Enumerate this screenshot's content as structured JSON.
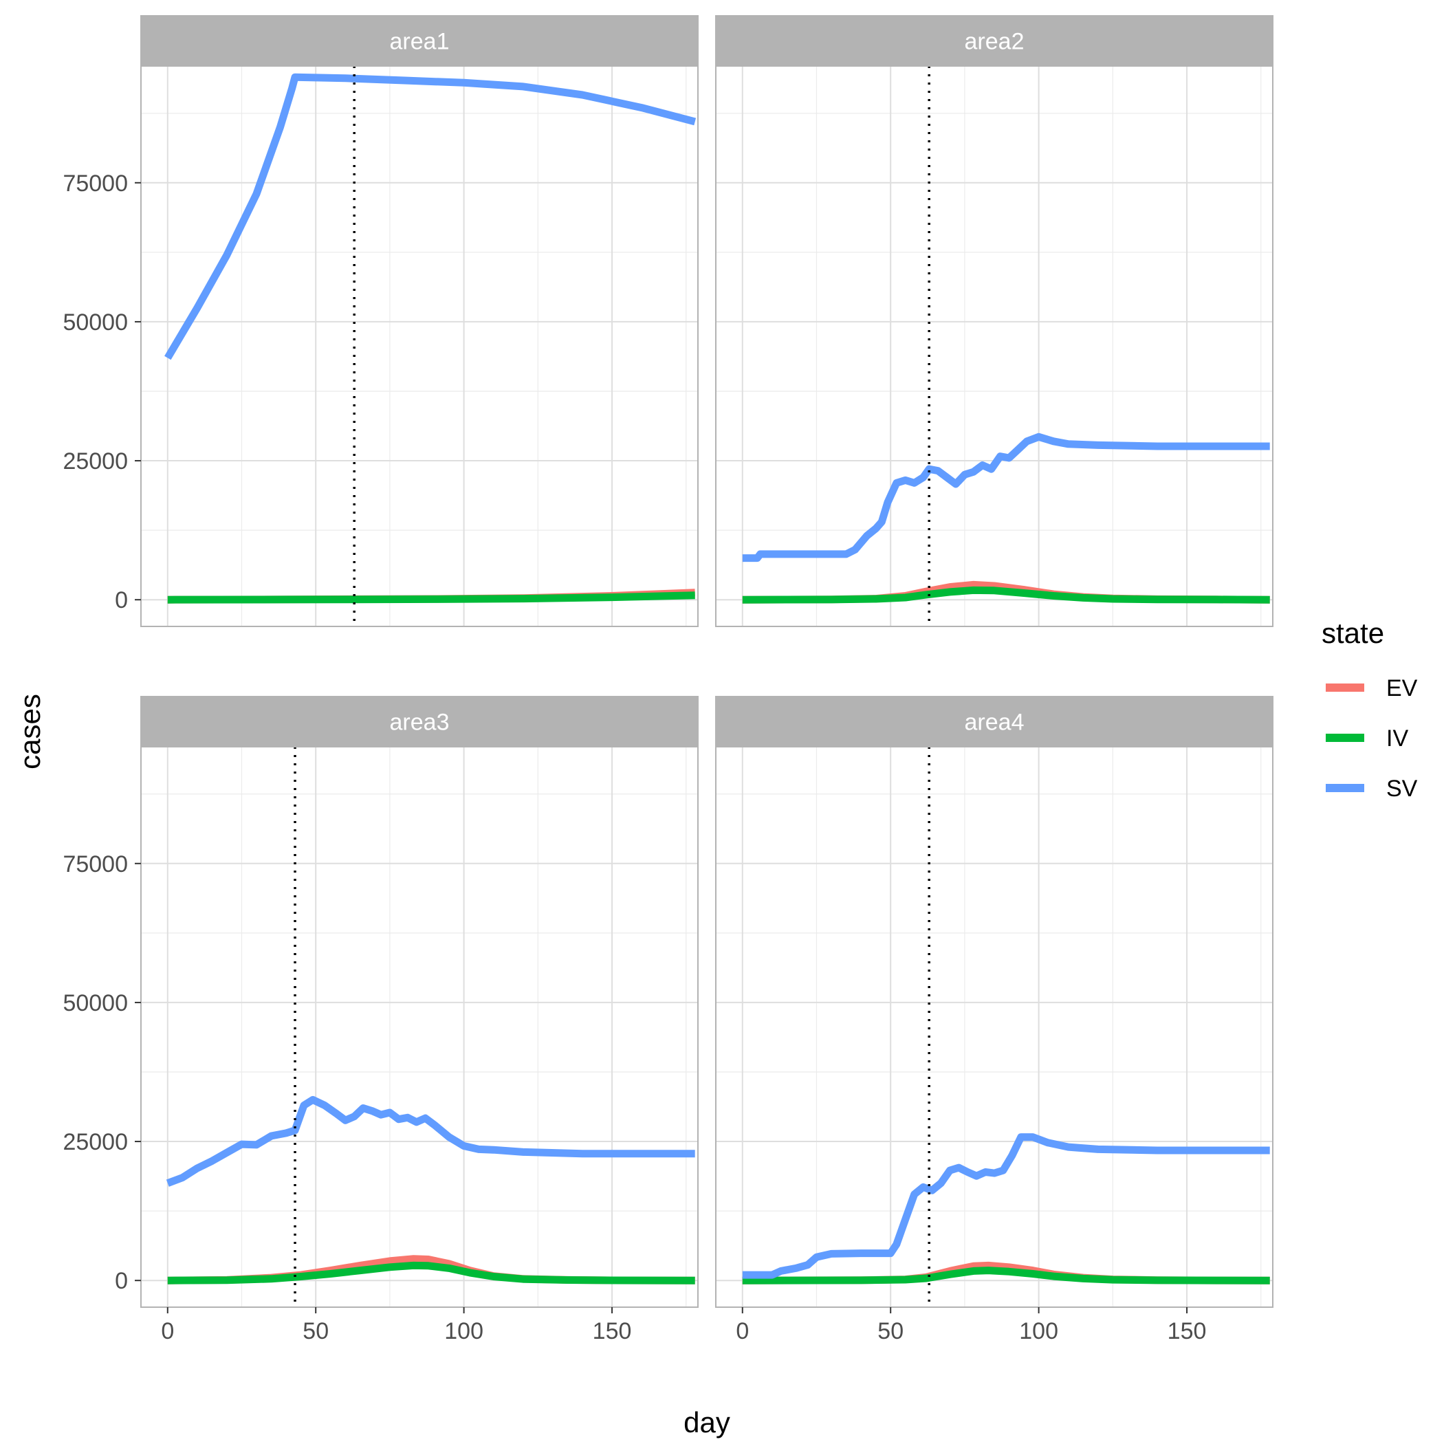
{
  "chart_data": {
    "type": "line",
    "facet_by": "area",
    "xlabel": "day",
    "ylabel": "cases",
    "xlim": [
      -9,
      179
    ],
    "ylim": [
      -4800,
      96000
    ],
    "x_ticks": [
      0,
      50,
      100,
      150
    ],
    "y_ticks": [
      0,
      25000,
      50000,
      75000
    ],
    "grid": true,
    "legend": {
      "title": "state",
      "position": "right",
      "entries": [
        {
          "label": "EV",
          "color": "#F8766D"
        },
        {
          "label": "IV",
          "color": "#00BA38"
        },
        {
          "label": "SV",
          "color": "#619CFF"
        }
      ]
    },
    "panels": [
      {
        "name": "area1",
        "vline_x": 63,
        "series": [
          {
            "name": "EV",
            "color": "#F8766D",
            "points": [
              [
                0,
                0
              ],
              [
                40,
                50
              ],
              [
                63,
                100
              ],
              [
                90,
                150
              ],
              [
                120,
                300
              ],
              [
                150,
                700
              ],
              [
                178,
                1300
              ]
            ]
          },
          {
            "name": "IV",
            "color": "#00BA38",
            "points": [
              [
                0,
                0
              ],
              [
                40,
                30
              ],
              [
                63,
                60
              ],
              [
                90,
                100
              ],
              [
                120,
                200
              ],
              [
                150,
                450
              ],
              [
                178,
                800
              ]
            ]
          },
          {
            "name": "SV",
            "color": "#619CFF",
            "points": [
              [
                0,
                43500
              ],
              [
                10,
                52500
              ],
              [
                20,
                62000
              ],
              [
                30,
                73000
              ],
              [
                38,
                85000
              ],
              [
                42,
                92000
              ],
              [
                43,
                94000
              ],
              [
                60,
                93800
              ],
              [
                80,
                93400
              ],
              [
                100,
                93000
              ],
              [
                120,
                92300
              ],
              [
                140,
                90800
              ],
              [
                160,
                88500
              ],
              [
                178,
                86000
              ]
            ]
          }
        ]
      },
      {
        "name": "area2",
        "vline_x": 63,
        "series": [
          {
            "name": "EV",
            "color": "#F8766D",
            "points": [
              [
                0,
                0
              ],
              [
                30,
                50
              ],
              [
                45,
                200
              ],
              [
                55,
                700
              ],
              [
                62,
                1500
              ],
              [
                70,
                2300
              ],
              [
                78,
                2700
              ],
              [
                85,
                2500
              ],
              [
                95,
                1800
              ],
              [
                105,
                1000
              ],
              [
                115,
                500
              ],
              [
                125,
                250
              ],
              [
                140,
                100
              ],
              [
                160,
                50
              ],
              [
                178,
                0
              ]
            ]
          },
          {
            "name": "IV",
            "color": "#00BA38",
            "points": [
              [
                0,
                0
              ],
              [
                30,
                30
              ],
              [
                45,
                150
              ],
              [
                55,
                400
              ],
              [
                62,
                900
              ],
              [
                70,
                1400
              ],
              [
                78,
                1700
              ],
              [
                85,
                1650
              ],
              [
                95,
                1200
              ],
              [
                105,
                700
              ],
              [
                115,
                350
              ],
              [
                125,
                150
              ],
              [
                140,
                60
              ],
              [
                160,
                30
              ],
              [
                178,
                0
              ]
            ]
          },
          {
            "name": "SV",
            "color": "#619CFF",
            "points": [
              [
                0,
                7500
              ],
              [
                5,
                7500
              ],
              [
                6,
                8200
              ],
              [
                35,
                8200
              ],
              [
                38,
                9000
              ],
              [
                42,
                11500
              ],
              [
                45,
                12800
              ],
              [
                47,
                14000
              ],
              [
                49,
                17500
              ],
              [
                52,
                21000
              ],
              [
                55,
                21500
              ],
              [
                58,
                21000
              ],
              [
                61,
                22000
              ],
              [
                63,
                23500
              ],
              [
                66,
                23200
              ],
              [
                69,
                22000
              ],
              [
                72,
                20800
              ],
              [
                75,
                22500
              ],
              [
                78,
                23000
              ],
              [
                81,
                24200
              ],
              [
                84,
                23500
              ],
              [
                87,
                25800
              ],
              [
                90,
                25500
              ],
              [
                93,
                27000
              ],
              [
                96,
                28500
              ],
              [
                100,
                29300
              ],
              [
                105,
                28500
              ],
              [
                110,
                28000
              ],
              [
                120,
                27800
              ],
              [
                140,
                27600
              ],
              [
                160,
                27600
              ],
              [
                178,
                27600
              ]
            ]
          }
        ]
      },
      {
        "name": "area3",
        "vline_x": 43,
        "series": [
          {
            "name": "EV",
            "color": "#F8766D",
            "points": [
              [
                0,
                0
              ],
              [
                20,
                100
              ],
              [
                35,
                500
              ],
              [
                45,
                1000
              ],
              [
                55,
                1800
              ],
              [
                65,
                2700
              ],
              [
                75,
                3500
              ],
              [
                83,
                3900
              ],
              [
                88,
                3800
              ],
              [
                95,
                3000
              ],
              [
                102,
                1800
              ],
              [
                110,
                800
              ],
              [
                120,
                300
              ],
              [
                135,
                100
              ],
              [
                150,
                20
              ],
              [
                178,
                0
              ]
            ]
          },
          {
            "name": "IV",
            "color": "#00BA38",
            "points": [
              [
                0,
                0
              ],
              [
                20,
                60
              ],
              [
                35,
                300
              ],
              [
                45,
                700
              ],
              [
                55,
                1200
              ],
              [
                65,
                1800
              ],
              [
                75,
                2400
              ],
              [
                83,
                2700
              ],
              [
                88,
                2650
              ],
              [
                95,
                2200
              ],
              [
                102,
                1400
              ],
              [
                110,
                700
              ],
              [
                120,
                250
              ],
              [
                135,
                80
              ],
              [
                150,
                20
              ],
              [
                178,
                0
              ]
            ]
          },
          {
            "name": "SV",
            "color": "#619CFF",
            "points": [
              [
                0,
                17500
              ],
              [
                5,
                18500
              ],
              [
                10,
                20200
              ],
              [
                15,
                21500
              ],
              [
                20,
                23000
              ],
              [
                25,
                24500
              ],
              [
                30,
                24400
              ],
              [
                35,
                26000
              ],
              [
                40,
                26500
              ],
              [
                43,
                27000
              ],
              [
                46,
                31500
              ],
              [
                49,
                32500
              ],
              [
                53,
                31500
              ],
              [
                57,
                30000
              ],
              [
                60,
                28800
              ],
              [
                63,
                29500
              ],
              [
                66,
                31000
              ],
              [
                69,
                30500
              ],
              [
                72,
                29800
              ],
              [
                75,
                30200
              ],
              [
                78,
                29000
              ],
              [
                81,
                29300
              ],
              [
                84,
                28500
              ],
              [
                87,
                29200
              ],
              [
                90,
                28000
              ],
              [
                95,
                25800
              ],
              [
                100,
                24200
              ],
              [
                105,
                23600
              ],
              [
                110,
                23500
              ],
              [
                120,
                23100
              ],
              [
                140,
                22800
              ],
              [
                160,
                22800
              ],
              [
                178,
                22800
              ]
            ]
          }
        ]
      },
      {
        "name": "area4",
        "vline_x": 63,
        "series": [
          {
            "name": "EV",
            "color": "#F8766D",
            "points": [
              [
                0,
                0
              ],
              [
                40,
                50
              ],
              [
                55,
                200
              ],
              [
                62,
                600
              ],
              [
                70,
                1700
              ],
              [
                78,
                2600
              ],
              [
                83,
                2700
              ],
              [
                90,
                2400
              ],
              [
                98,
                1800
              ],
              [
                105,
                1100
              ],
              [
                115,
                500
              ],
              [
                125,
                200
              ],
              [
                140,
                60
              ],
              [
                160,
                10
              ],
              [
                178,
                0
              ]
            ]
          },
          {
            "name": "IV",
            "color": "#00BA38",
            "points": [
              [
                0,
                0
              ],
              [
                40,
                30
              ],
              [
                55,
                150
              ],
              [
                62,
                400
              ],
              [
                70,
                1100
              ],
              [
                78,
                1700
              ],
              [
                83,
                1800
              ],
              [
                90,
                1600
              ],
              [
                98,
                1200
              ],
              [
                105,
                750
              ],
              [
                115,
                350
              ],
              [
                125,
                130
              ],
              [
                140,
                40
              ],
              [
                160,
                10
              ],
              [
                178,
                0
              ]
            ]
          },
          {
            "name": "SV",
            "color": "#619CFF",
            "points": [
              [
                0,
                1000
              ],
              [
                10,
                1000
              ],
              [
                13,
                1700
              ],
              [
                18,
                2200
              ],
              [
                22,
                2800
              ],
              [
                25,
                4200
              ],
              [
                30,
                4800
              ],
              [
                40,
                4900
              ],
              [
                50,
                4900
              ],
              [
                52,
                6500
              ],
              [
                55,
                11000
              ],
              [
                58,
                15500
              ],
              [
                61,
                16800
              ],
              [
                64,
                16200
              ],
              [
                67,
                17500
              ],
              [
                70,
                19800
              ],
              [
                73,
                20300
              ],
              [
                76,
                19500
              ],
              [
                79,
                18800
              ],
              [
                82,
                19500
              ],
              [
                85,
                19300
              ],
              [
                88,
                19800
              ],
              [
                91,
                22500
              ],
              [
                94,
                25800
              ],
              [
                98,
                25800
              ],
              [
                103,
                24800
              ],
              [
                110,
                24000
              ],
              [
                120,
                23600
              ],
              [
                140,
                23400
              ],
              [
                160,
                23400
              ],
              [
                178,
                23400
              ]
            ]
          }
        ]
      }
    ]
  }
}
